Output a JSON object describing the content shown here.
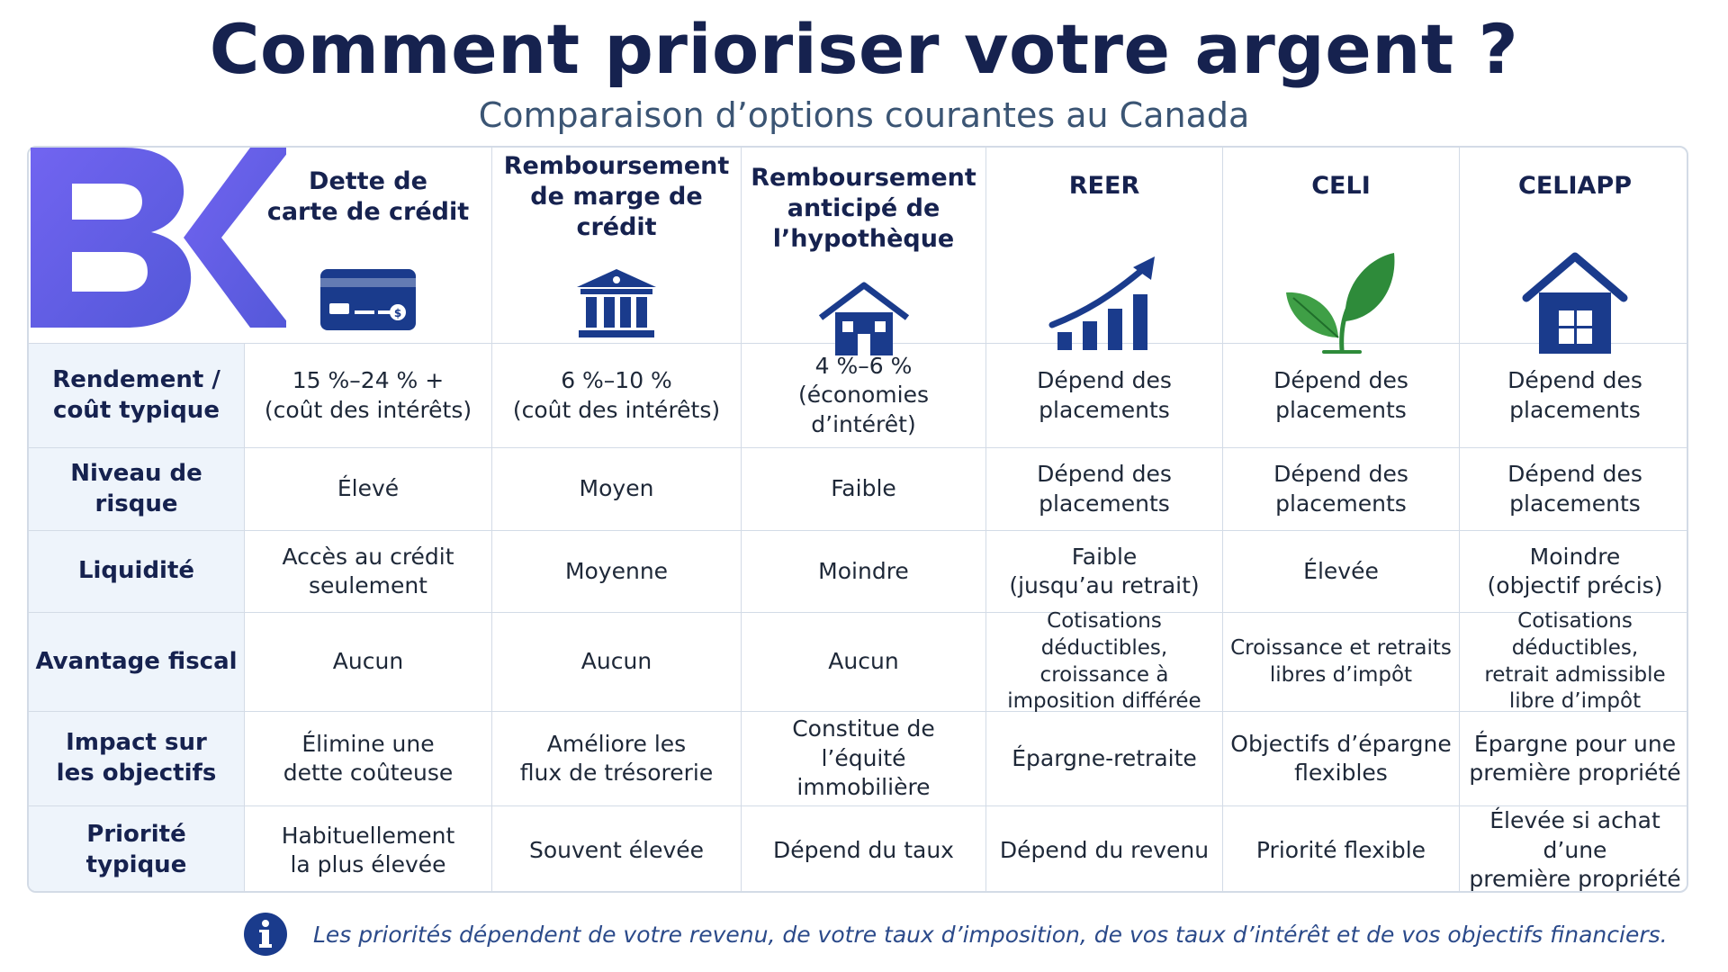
{
  "title": "Comment prioriser votre argent ?",
  "subtitle": "Comparaison d’options courantes au Canada",
  "logo": {
    "letters": "BK",
    "icon": "bk-logo"
  },
  "columns": [
    {
      "label": "Dette de\ncarte de crédit",
      "icon": "credit-card-icon"
    },
    {
      "label": "Remboursement\nde marge de crédit",
      "icon": "bank-icon"
    },
    {
      "label": "Remboursement\nanticipé de\nl’hypothèque",
      "icon": "house-icon"
    },
    {
      "label": "REER",
      "icon": "growth-chart-icon"
    },
    {
      "label": "CELI",
      "icon": "leaf-icon"
    },
    {
      "label": "CELIAPP",
      "icon": "home-icon"
    }
  ],
  "rows": [
    {
      "label": "Rendement /\ncoût typique",
      "cells": [
        "15 %–24 % +\n(coût des intérêts)",
        "6 %–10 %\n(coût des intérêts)",
        "4 %–6 %\n(économies d’intérêt)",
        "Dépend des\nplacements",
        "Dépend des\nplacements",
        "Dépend des\nplacements"
      ]
    },
    {
      "label": "Niveau de risque",
      "cells": [
        "Élevé",
        "Moyen",
        "Faible",
        "Dépend des\nplacements",
        "Dépend des\nplacements",
        "Dépend des\nplacements"
      ]
    },
    {
      "label": "Liquidité",
      "cells": [
        "Accès au crédit\nseulement",
        "Moyenne",
        "Moindre",
        "Faible\n(jusqu’au retrait)",
        "Élevée",
        "Moindre\n(objectif précis)"
      ]
    },
    {
      "label": "Avantage fiscal",
      "cells": [
        "Aucun",
        "Aucun",
        "Aucun",
        "Cotisations déductibles,\ncroissance à\nimposition différée",
        "Croissance et retraits\nlibres d’impôt",
        "Cotisations déductibles,\nretrait admissible\nlibre d’impôt"
      ]
    },
    {
      "label": "Impact sur\nles objectifs",
      "cells": [
        "Élimine une\ndette coûteuse",
        "Améliore les\nflux de trésorerie",
        "Constitue de l’équité\nimmobilière",
        "Épargne-retraite",
        "Objectifs d’épargne\nflexibles",
        "Épargne pour une\npremière propriété"
      ]
    },
    {
      "label": "Priorité typique",
      "cells": [
        "Habituellement\nla plus élevée",
        "Souvent élevée",
        "Dépend du taux",
        "Dépend du revenu",
        "Priorité flexible",
        "Élevée si achat d’une\npremière propriété"
      ]
    }
  ],
  "footer": {
    "icon": "info-icon",
    "note": "Les priorités dépendent de votre revenu, de votre taux d’imposition, de vos taux d’intérêt et de vos objectifs financiers."
  },
  "colors": {
    "navy": "#16224f",
    "icon_blue": "#1a3b8c",
    "leaf_green": "#2e8b3a",
    "logo_purple": "#5a55e0",
    "row_header_bg": "#eef4fb",
    "border": "#d3dbe6"
  }
}
